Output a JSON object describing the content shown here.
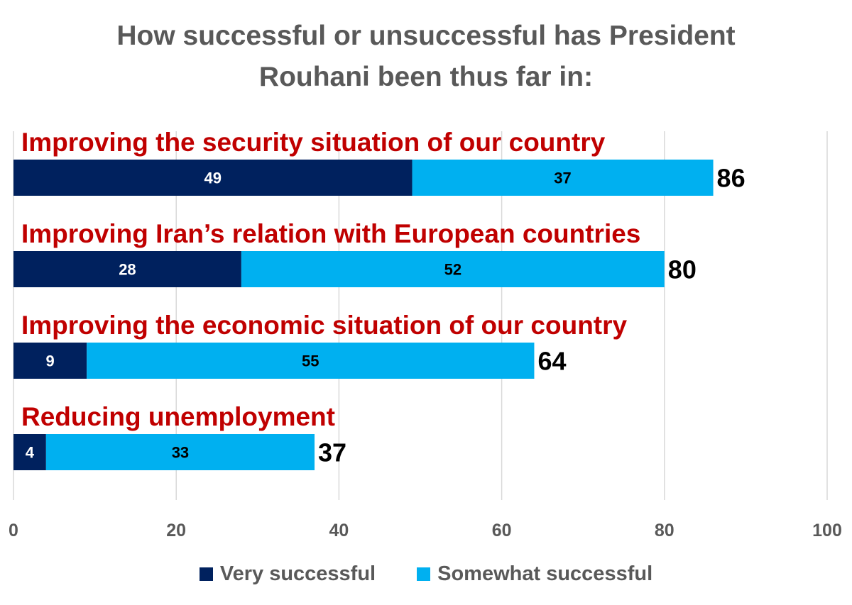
{
  "title": {
    "line1": "How successful or unsuccessful has President",
    "line2": "Rouhani been thus far in:"
  },
  "colors": {
    "very": "#00215e",
    "somewhat": "#00b0f0",
    "category_label": "#c00000",
    "grid": "#d9d9d9",
    "axis_text": "#595959"
  },
  "chart_data": {
    "type": "bar",
    "orientation": "horizontal",
    "stacked": true,
    "categories": [
      "Improving the security situation of our country",
      "Improving Iran’s relation with European countries",
      "Improving the economic situation of our country",
      "Reducing unemployment"
    ],
    "series": [
      {
        "name": "Very successful",
        "values": [
          49,
          28,
          9,
          4
        ]
      },
      {
        "name": "Somewhat successful",
        "values": [
          37,
          52,
          55,
          33
        ]
      }
    ],
    "totals": [
      86,
      80,
      64,
      37
    ],
    "xlim": [
      0,
      100
    ],
    "xticks": [
      0,
      20,
      40,
      60,
      80,
      100
    ],
    "grid": true,
    "legend_position": "bottom"
  }
}
